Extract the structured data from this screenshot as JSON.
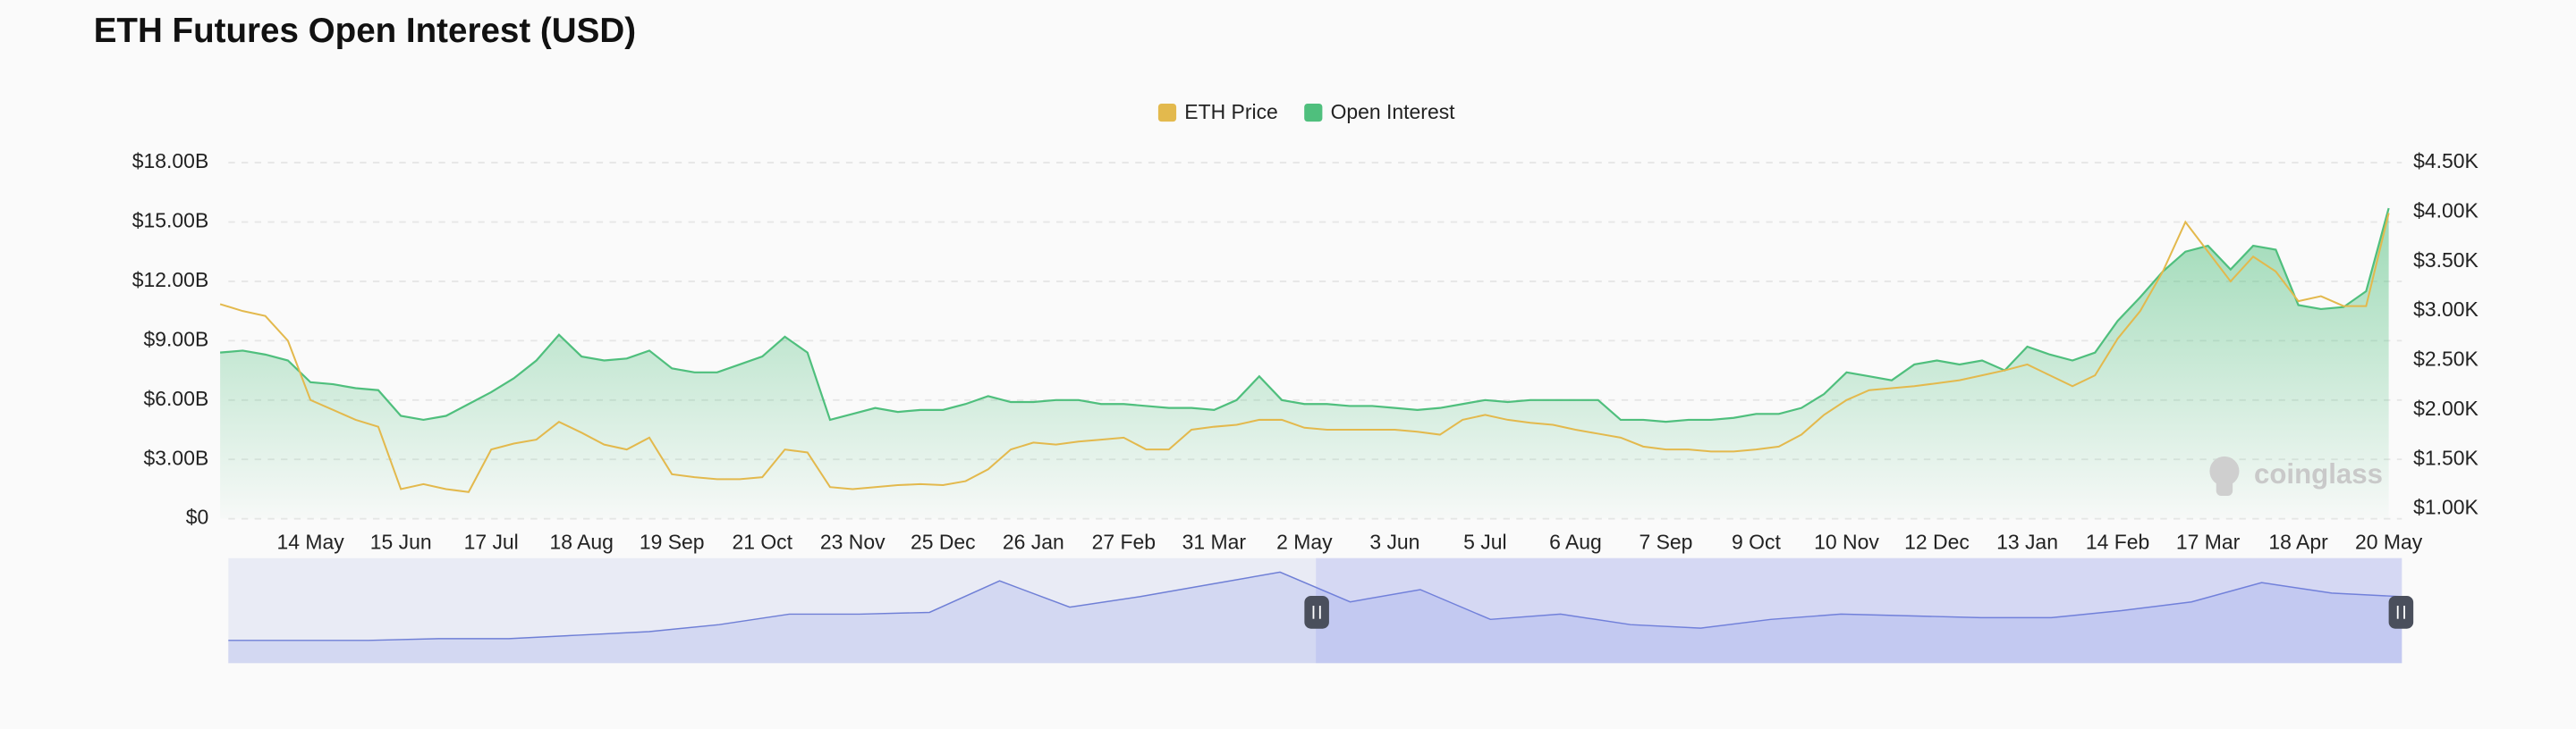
{
  "chart_data": {
    "type": "line",
    "title": "ETH Futures Open Interest (USD)",
    "watermark": "coinglass",
    "legend": "top",
    "grid": true,
    "categories": [
      null,
      null,
      null,
      null,
      "14 May",
      null,
      null,
      null,
      "15 Jun",
      null,
      null,
      null,
      "17 Jul",
      null,
      null,
      null,
      "18 Aug",
      null,
      null,
      null,
      "19 Sep",
      null,
      null,
      null,
      "21 Oct",
      null,
      null,
      null,
      "23 Nov",
      null,
      null,
      null,
      "25 Dec",
      null,
      null,
      null,
      "26 Jan",
      null,
      null,
      null,
      "27 Feb",
      null,
      null,
      null,
      "31 Mar",
      null,
      null,
      null,
      "2 May",
      null,
      null,
      null,
      "3 Jun",
      null,
      null,
      null,
      "5 Jul",
      null,
      null,
      null,
      "6 Aug",
      null,
      null,
      null,
      "7 Sep",
      null,
      null,
      null,
      "9 Oct",
      null,
      null,
      null,
      "10 Nov",
      null,
      null,
      null,
      "12 Dec",
      null,
      null,
      null,
      "13 Jan",
      null,
      null,
      null,
      "14 Feb",
      null,
      null,
      null,
      "17 Mar",
      null,
      null,
      null,
      "18 Apr",
      null,
      null,
      null,
      "20 May"
    ],
    "series": [
      {
        "name": "ETH Price",
        "color": "#e3b94d",
        "axis": "y2",
        "values": [
          3.07,
          3.0,
          2.95,
          2.7,
          2.1,
          2.0,
          1.9,
          1.83,
          1.2,
          1.25,
          1.2,
          1.17,
          1.6,
          1.66,
          1.7,
          1.88,
          1.77,
          1.65,
          1.6,
          1.72,
          1.35,
          1.32,
          1.3,
          1.3,
          1.32,
          1.6,
          1.57,
          1.22,
          1.2,
          1.22,
          1.24,
          1.25,
          1.24,
          1.28,
          1.4,
          1.6,
          1.67,
          1.65,
          1.68,
          1.7,
          1.72,
          1.6,
          1.6,
          1.8,
          1.83,
          1.85,
          1.9,
          1.9,
          1.82,
          1.8,
          1.8,
          1.8,
          1.8,
          1.78,
          1.75,
          1.9,
          1.95,
          1.9,
          1.87,
          1.85,
          1.8,
          1.76,
          1.72,
          1.63,
          1.6,
          1.6,
          1.58,
          1.58,
          1.6,
          1.63,
          1.75,
          1.95,
          2.1,
          2.2,
          2.22,
          2.24,
          2.27,
          2.3,
          2.35,
          2.4,
          2.46,
          2.35,
          2.24,
          2.35,
          2.72,
          3.0,
          3.4,
          3.9,
          3.6,
          3.3,
          3.55,
          3.4,
          3.1,
          3.15,
          3.05,
          3.05,
          3.99
        ]
      },
      {
        "name": "Open Interest",
        "color": "#4fbf7d",
        "values": [
          8.4,
          8.5,
          8.3,
          8.0,
          6.9,
          6.8,
          6.6,
          6.5,
          5.2,
          5.0,
          5.2,
          5.8,
          6.4,
          7.1,
          8.0,
          9.3,
          8.2,
          8.0,
          8.1,
          8.5,
          7.6,
          7.4,
          7.4,
          7.8,
          8.2,
          9.2,
          8.4,
          5.0,
          5.3,
          5.6,
          5.4,
          5.5,
          5.5,
          5.8,
          6.2,
          5.9,
          5.9,
          6.0,
          6.0,
          5.8,
          5.8,
          5.7,
          5.6,
          5.6,
          5.5,
          6.0,
          7.2,
          6.0,
          5.8,
          5.8,
          5.7,
          5.7,
          5.6,
          5.5,
          5.6,
          5.8,
          6.0,
          5.9,
          6.0,
          6.0,
          6.0,
          6.0,
          5.0,
          5.0,
          4.9,
          5.0,
          5.0,
          5.1,
          5.3,
          5.3,
          5.6,
          6.3,
          7.4,
          7.2,
          7.0,
          7.8,
          8.0,
          7.8,
          8.0,
          7.5,
          8.7,
          8.3,
          8.0,
          8.4,
          10.0,
          11.2,
          12.5,
          13.5,
          13.8,
          12.6,
          13.8,
          13.6,
          10.8,
          10.6,
          10.7,
          11.5,
          15.7
        ]
      }
    ],
    "ylim": [
      0,
      18
    ],
    "yticks": [
      {
        "value": 0,
        "label": "$0"
      },
      {
        "value": 3,
        "label": "$3.00B"
      },
      {
        "value": 6,
        "label": "$6.00B"
      },
      {
        "value": 9,
        "label": "$9.00B"
      },
      {
        "value": 12,
        "label": "$12.00B"
      },
      {
        "value": 15,
        "label": "$15.00B"
      },
      {
        "value": 18,
        "label": "$18.00B"
      }
    ],
    "y2lim": [
      0.9,
      4.5
    ],
    "y2ticks": [
      {
        "value": 1,
        "label": "$1.00K"
      },
      {
        "value": 1.5,
        "label": "$1.50K"
      },
      {
        "value": 2,
        "label": "$2.00K"
      },
      {
        "value": 2.5,
        "label": "$2.50K"
      },
      {
        "value": 3,
        "label": "$3.00K"
      },
      {
        "value": 3.5,
        "label": "$3.50K"
      },
      {
        "value": 4,
        "label": "$4.00K"
      },
      {
        "value": 4.5,
        "label": "$4.50K"
      }
    ],
    "navigator": {
      "ylim": [
        0,
        60
      ],
      "values": [
        13,
        13,
        13,
        14,
        14,
        16,
        18,
        22,
        28,
        28,
        29,
        47,
        32,
        38,
        45,
        52,
        35,
        42,
        25,
        28,
        22,
        20,
        25,
        28,
        27,
        26,
        26,
        30,
        35,
        46,
        40,
        38
      ]
    }
  }
}
